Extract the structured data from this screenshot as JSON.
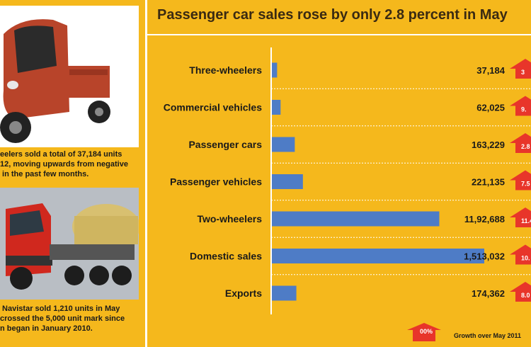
{
  "title": "Passenger car sales rose by only 2.8 percent in May",
  "captions": {
    "top": "eelers sold a total of 37,184 units\n12, moving upwards from negative\n in the past few months.",
    "bottom": " Navistar sold 1,210 units in May\ncrossed the 5,000 unit mark since\nn began in January 2010."
  },
  "legend": {
    "badge": "00%",
    "text": "Growth over May 2011"
  },
  "colors": {
    "bar": "#4e7cc6",
    "arrow": "#e8352a",
    "background": "#f5b81c"
  },
  "chart_data": {
    "type": "bar",
    "orientation": "horizontal",
    "categories": [
      "Three-wheelers",
      "Commercial vehicles",
      "Passenger cars",
      "Passenger vehicles",
      "Two-wheelers",
      "Domestic sales",
      "Exports"
    ],
    "values": [
      37184,
      62025,
      163229,
      221135,
      1192688,
      1513032,
      174362
    ],
    "value_labels": [
      "37,184",
      "62,025",
      "163,229",
      "221,135",
      "11,92,688",
      "1,513,032",
      "174,362"
    ],
    "growth_labels": [
      "3",
      "9.",
      "2.8",
      "7.5",
      "11.4",
      "10.",
      "8.0"
    ],
    "xlim": [
      0,
      1513032
    ],
    "grid": false
  }
}
